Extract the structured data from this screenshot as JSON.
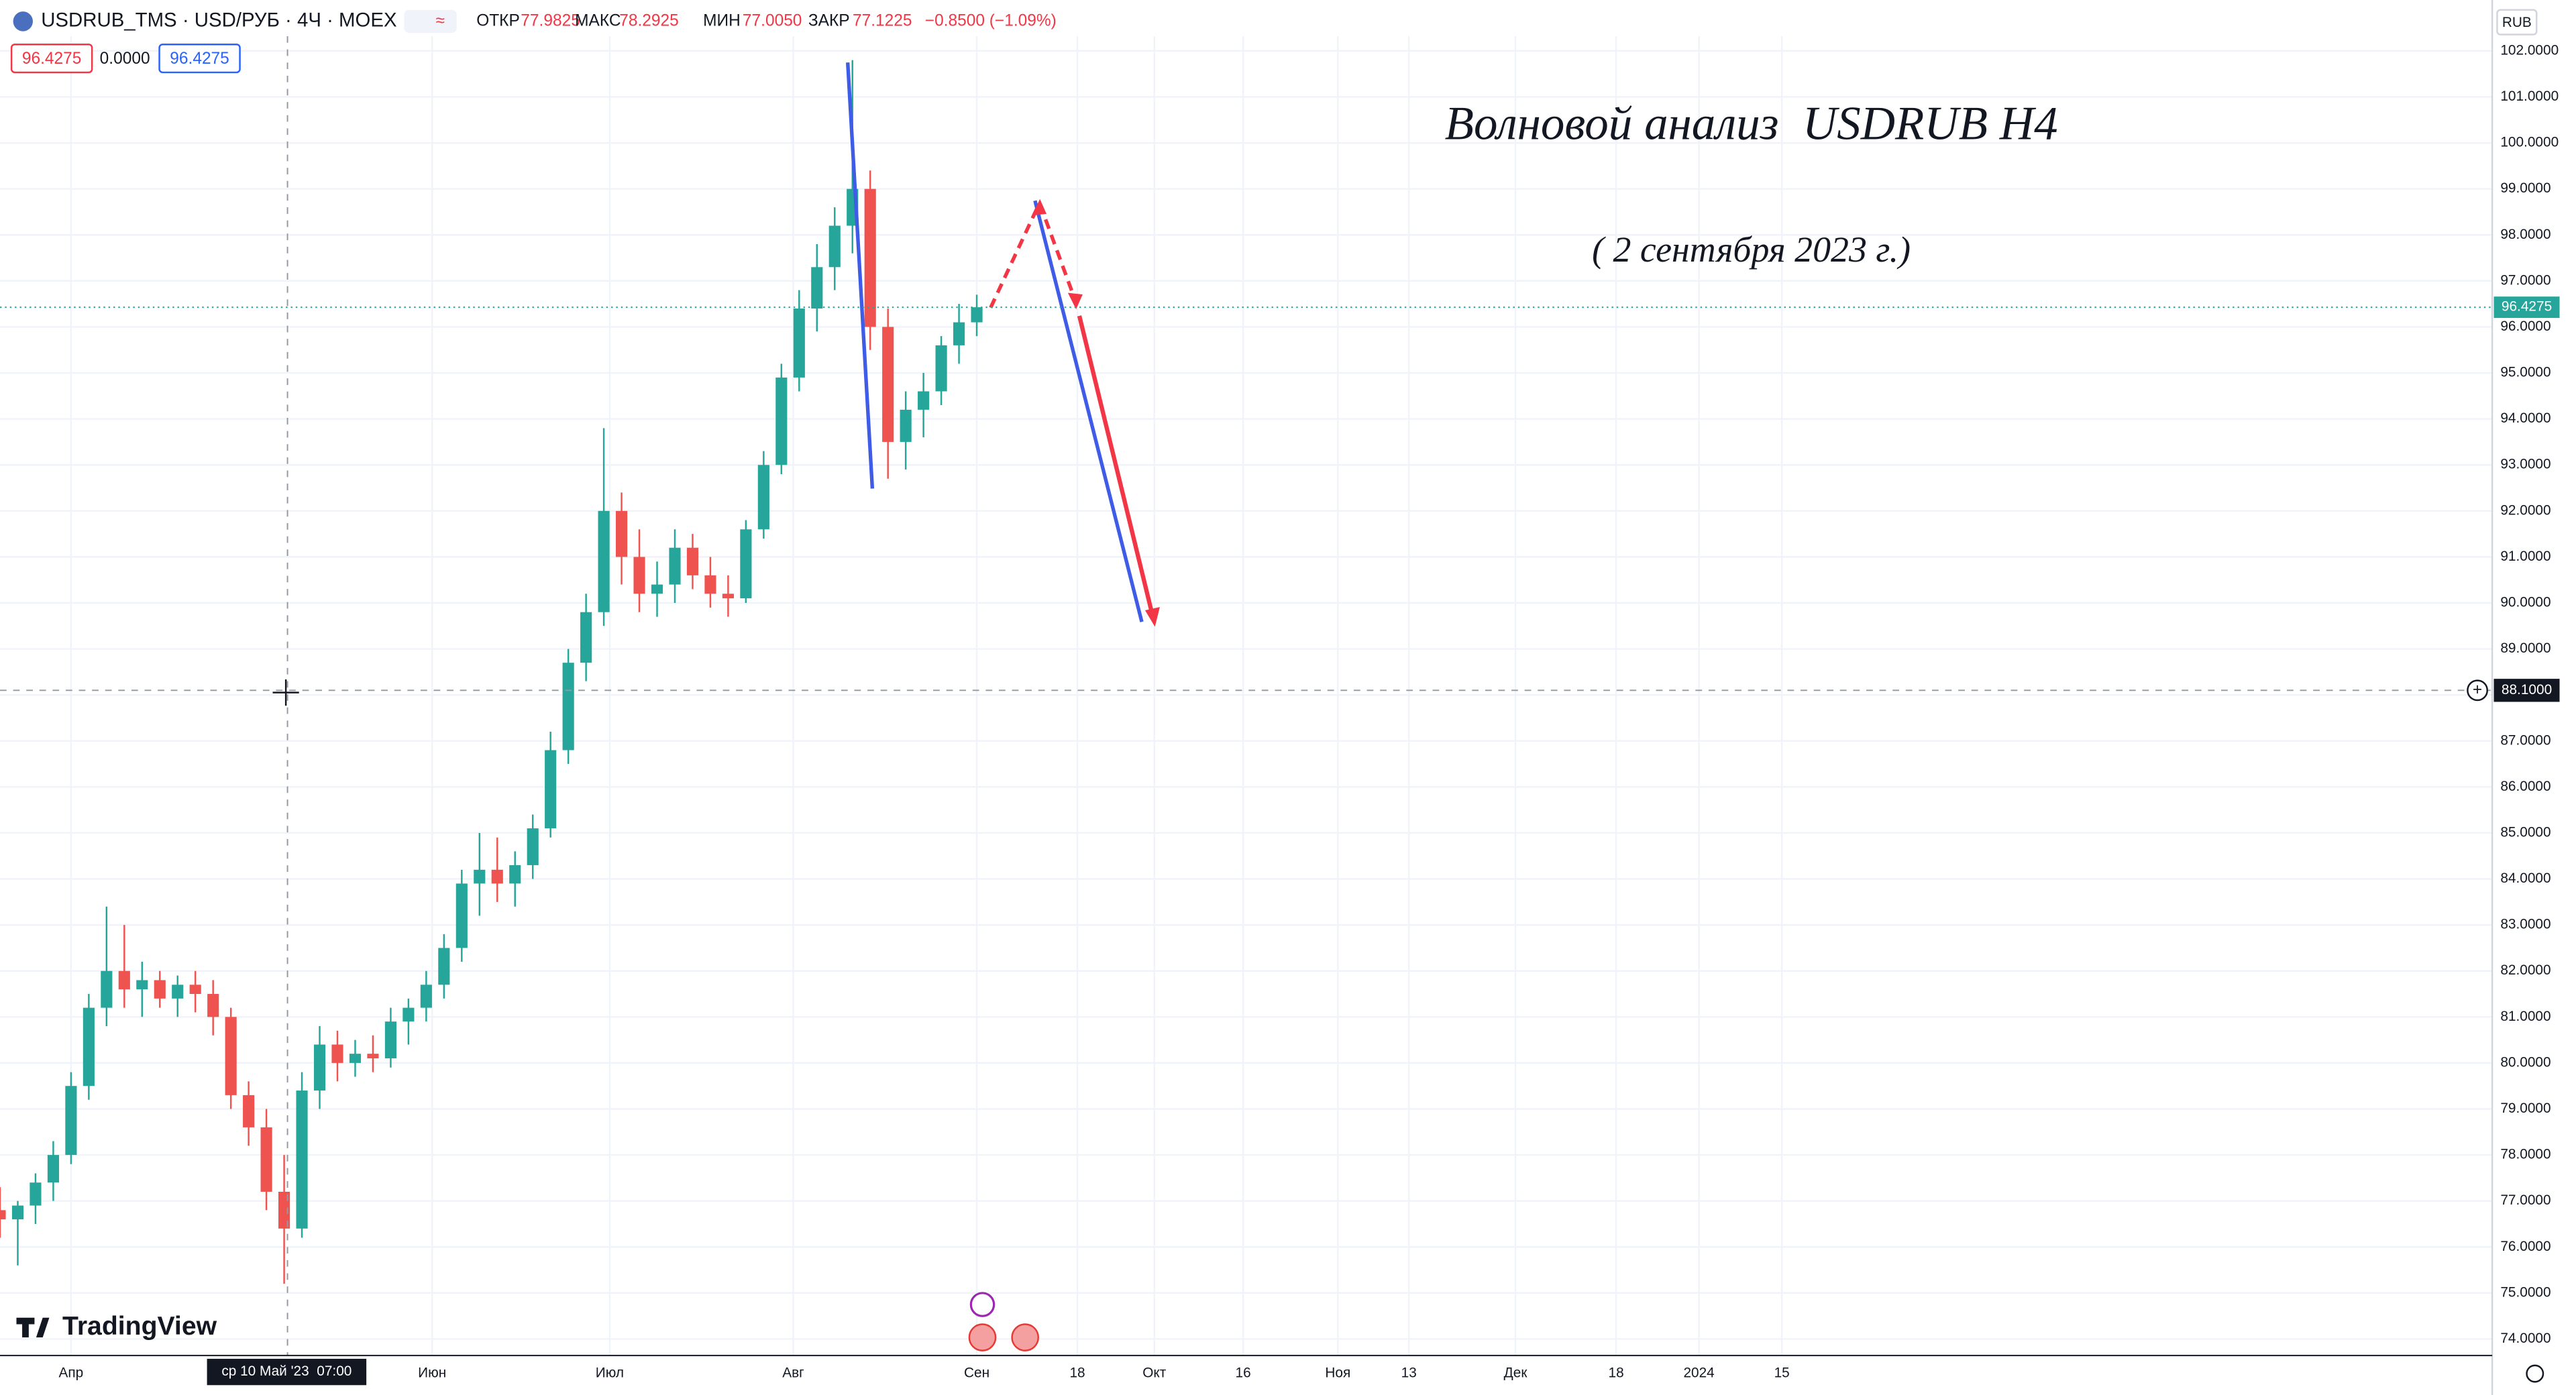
{
  "header": {
    "symbol": "USDRUB_TMS · USD/РУБ · 4Ч · MOEX",
    "ohlc": [
      {
        "label": "ОТКР",
        "value": "77.9825"
      },
      {
        "label": "МАКС",
        "value": "78.2925"
      },
      {
        "label": "МИН",
        "value": "77.0050"
      },
      {
        "label": "ЗАКР",
        "value": "77.1225"
      }
    ],
    "change": "−0.8500 (−1.09%)",
    "boxes": [
      "96.4275",
      "0.0000",
      "96.4275"
    ],
    "currency": "RUB",
    "brand": "TradingView"
  },
  "chart_data": {
    "type": "candlestick",
    "annotations": [
      "Волновой анализ  USDRUB H4",
      "( 2 сентября 2023 г.)"
    ],
    "up_color": "#26a69a",
    "down_color": "#ef5350",
    "grid": true,
    "x": [
      "2023-03-20",
      "2023-03-23",
      "2023-03-26",
      "2023-03-29",
      "2023-04-01",
      "2023-04-04",
      "2023-04-07",
      "2023-04-10",
      "2023-04-13",
      "2023-04-16",
      "2023-04-19",
      "2023-04-22",
      "2023-04-25",
      "2023-04-28",
      "2023-05-01",
      "2023-05-04",
      "2023-05-07",
      "2023-05-10",
      "2023-05-13",
      "2023-05-16",
      "2023-05-19",
      "2023-05-22",
      "2023-05-25",
      "2023-05-28",
      "2023-05-31",
      "2023-06-03",
      "2023-06-06",
      "2023-06-09",
      "2023-06-12",
      "2023-06-15",
      "2023-06-18",
      "2023-06-21",
      "2023-06-24",
      "2023-06-27",
      "2023-06-30",
      "2023-07-03",
      "2023-07-06",
      "2023-07-09",
      "2023-07-12",
      "2023-07-15",
      "2023-07-18",
      "2023-07-21",
      "2023-07-24",
      "2023-07-27",
      "2023-07-30",
      "2023-08-02",
      "2023-08-05",
      "2023-08-08",
      "2023-08-11",
      "2023-08-14",
      "2023-08-17",
      "2023-08-20",
      "2023-08-23",
      "2023-08-26",
      "2023-08-29",
      "2023-09-01"
    ],
    "open": [
      76.8,
      76.6,
      76.9,
      77.4,
      78.0,
      79.5,
      81.2,
      82.0,
      81.6,
      81.8,
      81.4,
      81.7,
      81.5,
      81.0,
      79.3,
      78.6,
      77.2,
      76.4,
      79.4,
      80.4,
      80.0,
      80.2,
      80.1,
      80.9,
      81.2,
      81.7,
      82.5,
      83.9,
      84.2,
      83.9,
      84.3,
      85.1,
      86.8,
      88.7,
      89.8,
      92.0,
      91.0,
      90.2,
      90.4,
      91.2,
      90.6,
      90.2,
      90.1,
      91.6,
      93.0,
      94.9,
      96.4,
      97.3,
      98.2,
      99.0,
      96.0,
      93.5,
      94.2,
      94.6,
      95.6,
      96.1
    ],
    "high": [
      77.3,
      77.0,
      77.6,
      78.3,
      79.8,
      81.5,
      83.4,
      83.0,
      82.2,
      82.0,
      81.9,
      82.0,
      81.8,
      81.2,
      79.6,
      79.0,
      78.0,
      79.8,
      80.8,
      80.7,
      80.5,
      80.6,
      81.2,
      81.4,
      82.0,
      82.8,
      84.2,
      85.0,
      84.9,
      84.6,
      85.4,
      87.2,
      89.0,
      90.2,
      93.8,
      92.4,
      91.6,
      90.9,
      91.6,
      91.5,
      91.0,
      90.6,
      91.8,
      93.3,
      95.2,
      96.8,
      97.8,
      98.6,
      101.8,
      99.4,
      96.4,
      94.6,
      95.0,
      95.8,
      96.5,
      96.7
    ],
    "low": [
      76.2,
      75.6,
      76.5,
      77.0,
      77.8,
      79.2,
      80.8,
      81.2,
      81.0,
      81.2,
      81.0,
      81.1,
      80.6,
      79.0,
      78.2,
      76.8,
      75.2,
      76.2,
      79.0,
      79.6,
      79.7,
      79.8,
      79.9,
      80.4,
      80.9,
      81.4,
      82.2,
      83.2,
      83.5,
      83.4,
      84.0,
      84.9,
      86.5,
      88.3,
      89.5,
      90.4,
      89.8,
      89.7,
      90.0,
      90.3,
      89.9,
      89.7,
      90.0,
      91.4,
      92.8,
      94.6,
      95.9,
      96.8,
      97.6,
      95.5,
      92.7,
      92.9,
      93.6,
      94.3,
      95.2,
      95.8
    ],
    "close": [
      76.6,
      76.9,
      77.4,
      78.0,
      79.5,
      81.2,
      82.0,
      81.6,
      81.8,
      81.4,
      81.7,
      81.5,
      81.0,
      79.3,
      78.6,
      77.2,
      76.4,
      79.4,
      80.4,
      80.0,
      80.2,
      80.1,
      80.9,
      81.2,
      81.7,
      82.5,
      83.9,
      84.2,
      83.9,
      84.3,
      85.1,
      86.8,
      88.7,
      89.8,
      92.0,
      91.0,
      90.2,
      90.4,
      91.2,
      90.6,
      90.2,
      90.1,
      91.6,
      93.0,
      94.9,
      96.4,
      97.3,
      98.2,
      99.0,
      96.0,
      93.5,
      94.2,
      94.6,
      95.6,
      96.1,
      96.4275
    ],
    "xlim": [
      "2023-03-20",
      "2024-05-14"
    ],
    "xticks": [
      {
        "value": "2023-04-01",
        "label": "Апр"
      },
      {
        "value": "2023-06-01",
        "label": "Июн"
      },
      {
        "value": "2023-07-01",
        "label": "Июл"
      },
      {
        "value": "2023-08-01",
        "label": "Авг"
      },
      {
        "value": "2023-09-01",
        "label": "Сен"
      },
      {
        "value": "2023-09-18",
        "label": "18"
      },
      {
        "value": "2023-10-01",
        "label": "Окт"
      },
      {
        "value": "2023-10-16",
        "label": "16"
      },
      {
        "value": "2023-11-01",
        "label": "Ноя"
      },
      {
        "value": "2023-11-13",
        "label": "13"
      },
      {
        "value": "2023-12-01",
        "label": "Дек"
      },
      {
        "value": "2023-12-18",
        "label": "18"
      },
      {
        "value": "2024-01-01",
        "label": "2024"
      },
      {
        "value": "2024-01-15",
        "label": "15"
      }
    ],
    "ylim": [
      73.64,
      102.32
    ],
    "yticks": [
      {
        "value": 74,
        "label": "74.0000"
      },
      {
        "value": 75,
        "label": "75.0000"
      },
      {
        "value": 76,
        "label": "76.0000"
      },
      {
        "value": 77,
        "label": "77.0000"
      },
      {
        "value": 78,
        "label": "78.0000"
      },
      {
        "value": 79,
        "label": "79.0000"
      },
      {
        "value": 80,
        "label": "80.0000"
      },
      {
        "value": 81,
        "label": "81.0000"
      },
      {
        "value": 82,
        "label": "82.0000"
      },
      {
        "value": 83,
        "label": "83.0000"
      },
      {
        "value": 84,
        "label": "84.0000"
      },
      {
        "value": 85,
        "label": "85.0000"
      },
      {
        "value": 86,
        "label": "86.0000"
      },
      {
        "value": 87,
        "label": "87.0000"
      },
      {
        "value": 88,
        "label": "88.0000"
      },
      {
        "value": 89,
        "label": "89.0000"
      },
      {
        "value": 90,
        "label": "90.0000"
      },
      {
        "value": 91,
        "label": "91.0000"
      },
      {
        "value": 92,
        "label": "92.0000"
      },
      {
        "value": 93,
        "label": "93.0000"
      },
      {
        "value": 94,
        "label": "94.0000"
      },
      {
        "value": 95,
        "label": "95.0000"
      },
      {
        "value": 96,
        "label": "96.0000"
      },
      {
        "value": 97,
        "label": "97.0000"
      },
      {
        "value": 98,
        "label": "98.0000"
      },
      {
        "value": 99,
        "label": "99.0000"
      },
      {
        "value": 100,
        "label": "100.0000"
      },
      {
        "value": 101,
        "label": "101.0000"
      },
      {
        "value": 102,
        "label": "102.0000"
      }
    ],
    "last_price": {
      "value": 96.4275,
      "label": "96.4275"
    },
    "crosshair": {
      "price": {
        "value": 88.1,
        "label": "88.1000"
      },
      "time": "ср 10 Май '23  07:00"
    }
  }
}
